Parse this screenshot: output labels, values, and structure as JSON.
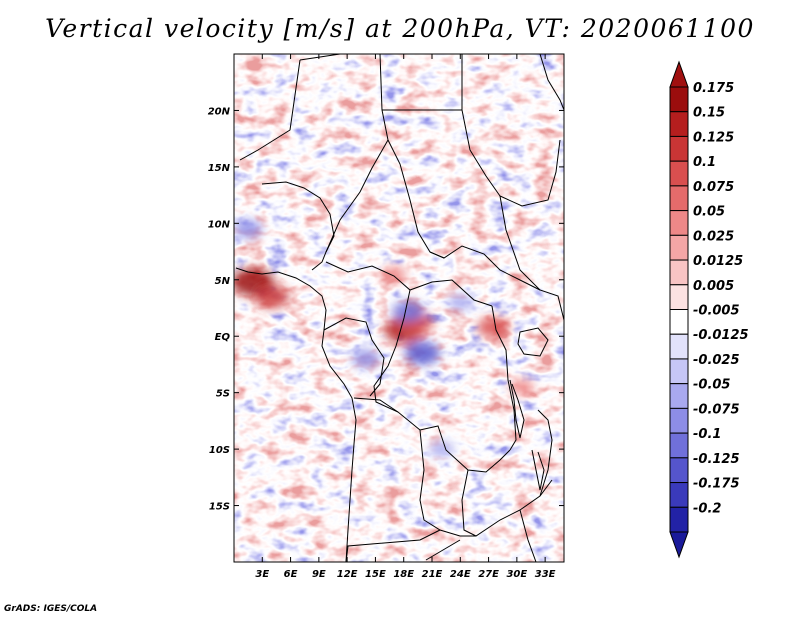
{
  "title": "Vertical velocity [m/s] at 200hPa, VT: 2020061100",
  "credit": "GrADS: IGES/COLA",
  "map": {
    "lon_range": [
      0,
      35
    ],
    "lat_range": [
      -20,
      25
    ],
    "lon_ticks": [
      {
        "value": 3,
        "label": "3E"
      },
      {
        "value": 6,
        "label": "6E"
      },
      {
        "value": 9,
        "label": "9E"
      },
      {
        "value": 12,
        "label": "12E"
      },
      {
        "value": 15,
        "label": "15E"
      },
      {
        "value": 18,
        "label": "18E"
      },
      {
        "value": 21,
        "label": "21E"
      },
      {
        "value": 24,
        "label": "24E"
      },
      {
        "value": 27,
        "label": "27E"
      },
      {
        "value": 30,
        "label": "30E"
      },
      {
        "value": 33,
        "label": "33E"
      }
    ],
    "lat_ticks": [
      {
        "value": 20,
        "label": "20N"
      },
      {
        "value": 15,
        "label": "15N"
      },
      {
        "value": 10,
        "label": "10N"
      },
      {
        "value": 5,
        "label": "5N"
      },
      {
        "value": 0,
        "label": "EQ"
      },
      {
        "value": -5,
        "label": "5S"
      },
      {
        "value": -10,
        "label": "10S"
      },
      {
        "value": -15,
        "label": "15S"
      }
    ],
    "hotspots": [
      {
        "lon": 2,
        "lat": 4.8,
        "value": 0.175
      },
      {
        "lon": 18,
        "lat": 0.5,
        "value": 0.15
      },
      {
        "lon": 4,
        "lat": 3.5,
        "value": 0.125
      },
      {
        "lon": 19.5,
        "lat": 1.2,
        "value": 0.1
      },
      {
        "lon": 27.5,
        "lat": 0.8,
        "value": 0.1
      },
      {
        "lon": 30.5,
        "lat": -4.5,
        "value": 0.05
      },
      {
        "lon": 17,
        "lat": 5.5,
        "value": 0.05
      },
      {
        "lon": 20,
        "lat": -1.5,
        "value": -0.125
      },
      {
        "lon": 18.5,
        "lat": 2.2,
        "value": -0.1
      },
      {
        "lon": 1.5,
        "lat": 9.5,
        "value": -0.075
      },
      {
        "lon": 14,
        "lat": -2,
        "value": -0.075
      },
      {
        "lon": 24,
        "lat": 3,
        "value": -0.05
      },
      {
        "lon": 22,
        "lat": -10,
        "value": -0.05
      }
    ]
  },
  "colorbar": {
    "levels": [
      {
        "label": "0.175",
        "color": "#9b0d0d"
      },
      {
        "label": "0.15",
        "color": "#b51e1e"
      },
      {
        "label": "0.125",
        "color": "#c93535"
      },
      {
        "label": "0.1",
        "color": "#d94f4f"
      },
      {
        "label": "0.075",
        "color": "#e56b6b"
      },
      {
        "label": "0.05",
        "color": "#ee8888"
      },
      {
        "label": "0.025",
        "color": "#f4a6a6"
      },
      {
        "label": "0.0125",
        "color": "#f8c4c4"
      },
      {
        "label": "0.005",
        "color": "#fce2e2"
      },
      {
        "label": "-0.005",
        "color": "#ffffff"
      },
      {
        "label": "-0.0125",
        "color": "#e2e2fb"
      },
      {
        "label": "-0.025",
        "color": "#c6c6f6"
      },
      {
        "label": "-0.05",
        "color": "#a9a9ef"
      },
      {
        "label": "-0.075",
        "color": "#8d8de6"
      },
      {
        "label": "-0.1",
        "color": "#7070da"
      },
      {
        "label": "-0.125",
        "color": "#5555cc"
      },
      {
        "label": "-0.175",
        "color": "#3a3abb"
      },
      {
        "label": "-0.2",
        "color": "#2222a6"
      }
    ],
    "top_color": "#a01010",
    "bottom_color": "#1a1a9a"
  }
}
